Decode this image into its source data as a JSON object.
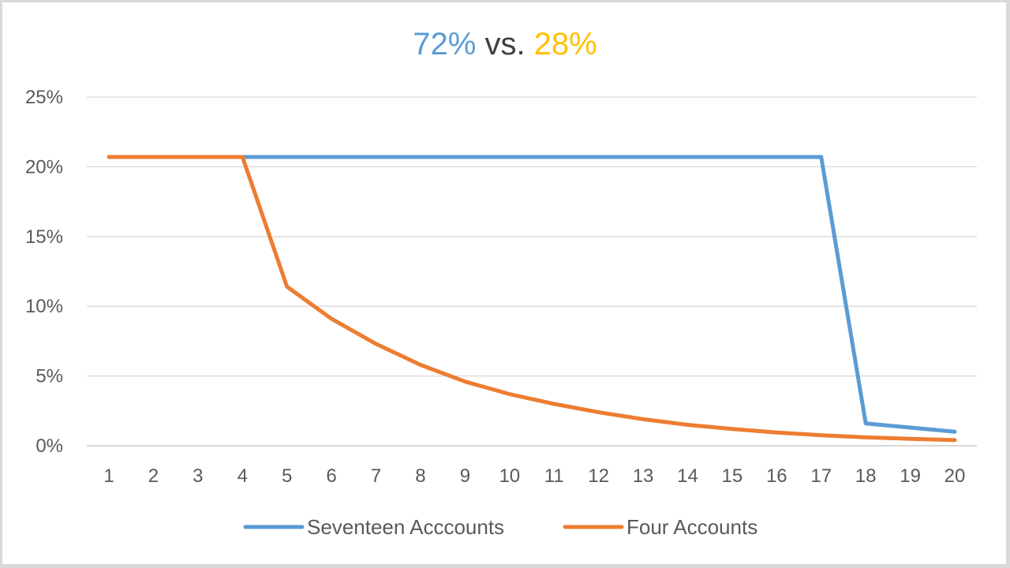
{
  "title": {
    "part1": "72%",
    "part2": " vs. ",
    "part3": "28%",
    "color1": "#5B9BD5",
    "color2": "#404040",
    "color3": "#FFC000"
  },
  "chart_data": {
    "type": "line",
    "x": [
      1,
      2,
      3,
      4,
      5,
      6,
      7,
      8,
      9,
      10,
      11,
      12,
      13,
      14,
      15,
      16,
      17,
      18,
      19,
      20
    ],
    "x_tick_labels": [
      "1",
      "2",
      "3",
      "4",
      "5",
      "6",
      "7",
      "8",
      "9",
      "10",
      "11",
      "12",
      "13",
      "14",
      "15",
      "16",
      "17",
      "18",
      "19",
      "20"
    ],
    "ylim": [
      0,
      25
    ],
    "y_ticks": [
      0,
      5,
      10,
      15,
      20,
      25
    ],
    "y_tick_labels": [
      "0%",
      "5%",
      "10%",
      "15%",
      "20%",
      "25%"
    ],
    "grid": true,
    "legend_position": "bottom",
    "series": [
      {
        "name": "Seventeen Acccounts",
        "color": "#5B9BD5",
        "values": [
          20.7,
          20.7,
          20.7,
          20.7,
          20.7,
          20.7,
          20.7,
          20.7,
          20.7,
          20.7,
          20.7,
          20.7,
          20.7,
          20.7,
          20.7,
          20.7,
          20.7,
          1.6,
          1.3,
          1.0
        ]
      },
      {
        "name": "Four Accounts",
        "color": "#ED7D31",
        "values": [
          20.7,
          20.7,
          20.7,
          20.7,
          11.4,
          9.1,
          7.3,
          5.8,
          4.6,
          3.7,
          3.0,
          2.4,
          1.9,
          1.5,
          1.2,
          0.95,
          0.75,
          0.6,
          0.5,
          0.4
        ]
      }
    ]
  }
}
